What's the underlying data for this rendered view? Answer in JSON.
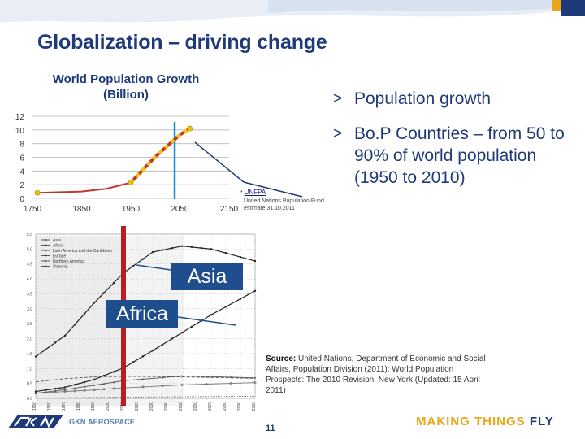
{
  "slide": {
    "title": "Globalization – driving change",
    "page_number": "11"
  },
  "top_chart": {
    "title": "World Population Growth (Billion)",
    "chart_data": {
      "type": "line",
      "title": "World Population Growth (Billion)",
      "x_ticks": [
        "1750",
        "1850",
        "1950",
        "2050",
        "2150"
      ],
      "y_ticks": [
        "0",
        "2",
        "4",
        "6",
        "8",
        "10",
        "12"
      ],
      "ylim": [
        0,
        12
      ],
      "series": [
        {
          "name": "Population",
          "points": [
            [
              1760,
              0.8
            ],
            [
              1850,
              1.0
            ],
            [
              1900,
              1.4
            ],
            [
              1950,
              2.3
            ],
            [
              2000,
              6.1
            ],
            [
              2050,
              9.3
            ],
            [
              2070,
              10.2
            ]
          ]
        }
      ]
    }
  },
  "bullets": [
    {
      "marker": ">",
      "text": "Population growth"
    },
    {
      "marker": ">",
      "text": "Bo.P Countries – from 50 to 90% of world population (1950 to 2010)"
    }
  ],
  "unfpa_note": {
    "prefix": "* ",
    "link": "UNFPA",
    "line1": "United Nations Population Fund",
    "line2": "estimate 31.10.2011"
  },
  "bottom_chart": {
    "chart_data": {
      "type": "line",
      "y_ticks": [
        "0.0",
        "0.5",
        "1.0",
        "1.5",
        "2.0",
        "2.5",
        "3.0",
        "3.5",
        "4.0",
        "4.5",
        "5.0",
        "5.5"
      ],
      "x_ticks": [
        "1950",
        "1960",
        "1970",
        "1980",
        "1990",
        "2000",
        "2010",
        "2020",
        "2030",
        "2040",
        "2050",
        "2060",
        "2070",
        "2080",
        "2090",
        "2100"
      ],
      "ylim": [
        0,
        5.5
      ],
      "legend": [
        "Asia",
        "Africa",
        "Latin America and the Caribbean",
        "Europe",
        "Northern America",
        "Oceania"
      ],
      "series": [
        {
          "name": "Asia",
          "points": [
            [
              1950,
              1.4
            ],
            [
              1970,
              2.1
            ],
            [
              1990,
              3.2
            ],
            [
              2010,
              4.2
            ],
            [
              2030,
              4.9
            ],
            [
              2050,
              5.1
            ],
            [
              2070,
              5.0
            ],
            [
              2100,
              4.6
            ]
          ]
        },
        {
          "name": "Africa",
          "points": [
            [
              1950,
              0.23
            ],
            [
              1970,
              0.37
            ],
            [
              1990,
              0.63
            ],
            [
              2010,
              1.02
            ],
            [
              2030,
              1.6
            ],
            [
              2050,
              2.2
            ],
            [
              2070,
              2.8
            ],
            [
              2100,
              3.6
            ]
          ]
        },
        {
          "name": "Latin America and the Caribbean",
          "points": [
            [
              1950,
              0.17
            ],
            [
              1970,
              0.29
            ],
            [
              1990,
              0.44
            ],
            [
              2010,
              0.59
            ],
            [
              2050,
              0.75
            ],
            [
              2100,
              0.69
            ]
          ]
        },
        {
          "name": "Europe",
          "points": [
            [
              1950,
              0.55
            ],
            [
              1970,
              0.66
            ],
            [
              1990,
              0.72
            ],
            [
              2010,
              0.74
            ],
            [
              2050,
              0.72
            ],
            [
              2100,
              0.67
            ]
          ]
        },
        {
          "name": "Northern America",
          "points": [
            [
              1950,
              0.17
            ],
            [
              1970,
              0.23
            ],
            [
              1990,
              0.28
            ],
            [
              2010,
              0.35
            ],
            [
              2050,
              0.45
            ],
            [
              2100,
              0.53
            ]
          ]
        },
        {
          "name": "Oceania",
          "points": [
            [
              1950,
              0.01
            ],
            [
              2010,
              0.04
            ],
            [
              2100,
              0.07
            ]
          ]
        }
      ]
    },
    "labels": {
      "asia": "Asia",
      "africa": "Africa"
    }
  },
  "source": {
    "label": "Source:",
    "text": "United Nations, Department of Economic and Social Affairs, Population Division (2011): World Population Prospects: The 2010 Revision. New York (Updated: 15 April 2011)"
  },
  "footer": {
    "logo_text": "GKN AEROSPACE",
    "tagline_a": "MAKING THINGS",
    "tagline_b": "FLY"
  },
  "colors": {
    "navy": "#1f3a78",
    "label_blue": "#1f4e8f",
    "accent_gold": "#e9a61a",
    "line_red": "#c0392b",
    "dash_yellow": "#f1c40f",
    "divider_blue": "#1f8fd1",
    "highlight_red": "#b81f24"
  }
}
